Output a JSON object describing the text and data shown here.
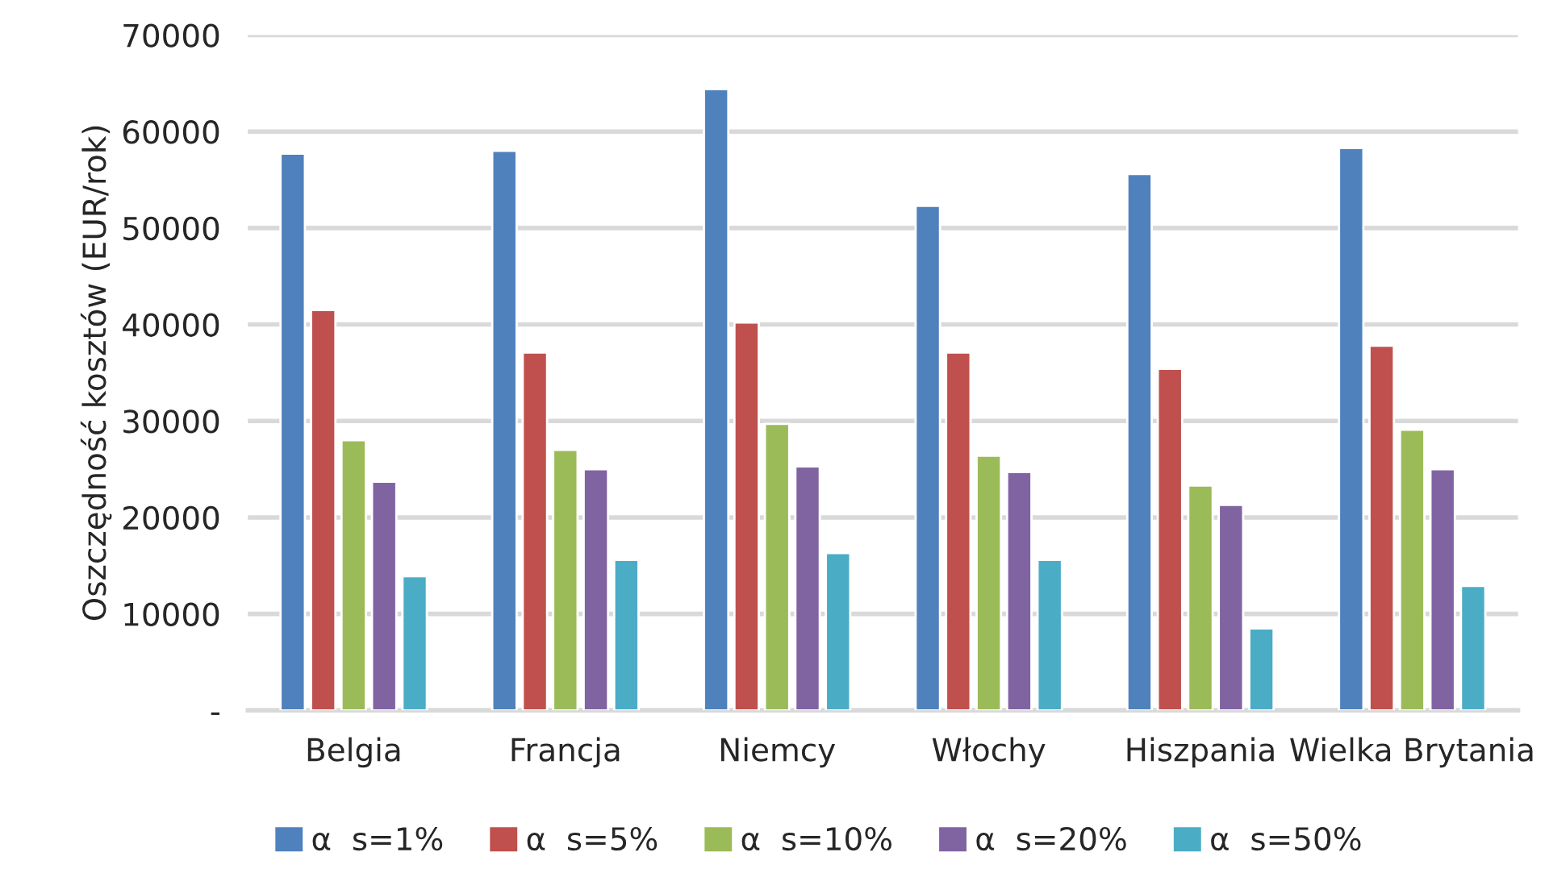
{
  "chart_data": {
    "type": "bar",
    "ylabel": "Oszczędność kosztów (EUR/rok)",
    "categories": [
      "Belgia",
      "Francja",
      "Niemcy",
      "Włochy",
      "Hiszpania",
      "Wielka Brytania"
    ],
    "series": [
      {
        "name": "α  s=1%",
        "color": "#4f81bd",
        "values": [
          57700,
          58000,
          64400,
          52300,
          55600,
          58300
        ]
      },
      {
        "name": "α  s=5%",
        "color": "#c0504d",
        "values": [
          41500,
          37100,
          40200,
          37100,
          35400,
          37800
        ]
      },
      {
        "name": "α  s=10%",
        "color": "#9bbb59",
        "values": [
          28000,
          27000,
          29700,
          26400,
          23300,
          29100
        ]
      },
      {
        "name": "α  s=20%",
        "color": "#8064a2",
        "values": [
          23700,
          25000,
          25300,
          24700,
          21300,
          25000
        ]
      },
      {
        "name": "α  s=50%",
        "color": "#4bacc6",
        "values": [
          13900,
          15600,
          16300,
          15600,
          8500,
          12900
        ]
      }
    ],
    "ylim": [
      0,
      70000
    ],
    "yticks": [
      {
        "value": 0,
        "label": "-"
      },
      10000,
      20000,
      30000,
      40000,
      50000,
      60000,
      70000
    ],
    "grid": "y",
    "legend": "bottom"
  }
}
